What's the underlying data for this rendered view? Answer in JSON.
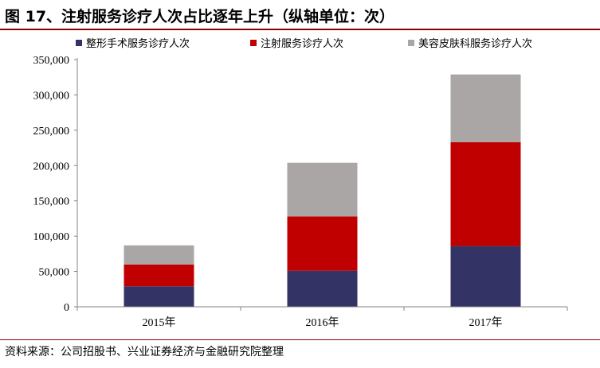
{
  "figure": {
    "title": "图 17、注射服务诊疗人次占比逐年上升（纵轴单位：次）",
    "source": "资料来源：公司招股书、兴业证券经济与金融研究院整理",
    "accent_color": "#8b0000"
  },
  "chart_data": {
    "type": "bar",
    "stacked": true,
    "categories": [
      "2015年",
      "2016年",
      "2017年"
    ],
    "series": [
      {
        "name": "整形手术服务诊疗人次",
        "color": "#333366",
        "values": [
          29000,
          51000,
          86000
        ]
      },
      {
        "name": "注射服务诊疗人次",
        "color": "#c00000",
        "values": [
          31000,
          77000,
          147000
        ]
      },
      {
        "name": "美容皮肤科服务诊疗人次",
        "color": "#aaa6a6",
        "values": [
          27000,
          76000,
          96000
        ]
      }
    ],
    "ylim": [
      0,
      350000
    ],
    "yticks": [
      0,
      50000,
      100000,
      150000,
      200000,
      250000,
      300000,
      350000
    ],
    "ytick_labels": [
      "0",
      "50,000",
      "100,000",
      "150,000",
      "200,000",
      "250,000",
      "300,000",
      "350,000"
    ],
    "legend": "top",
    "grid": false
  }
}
